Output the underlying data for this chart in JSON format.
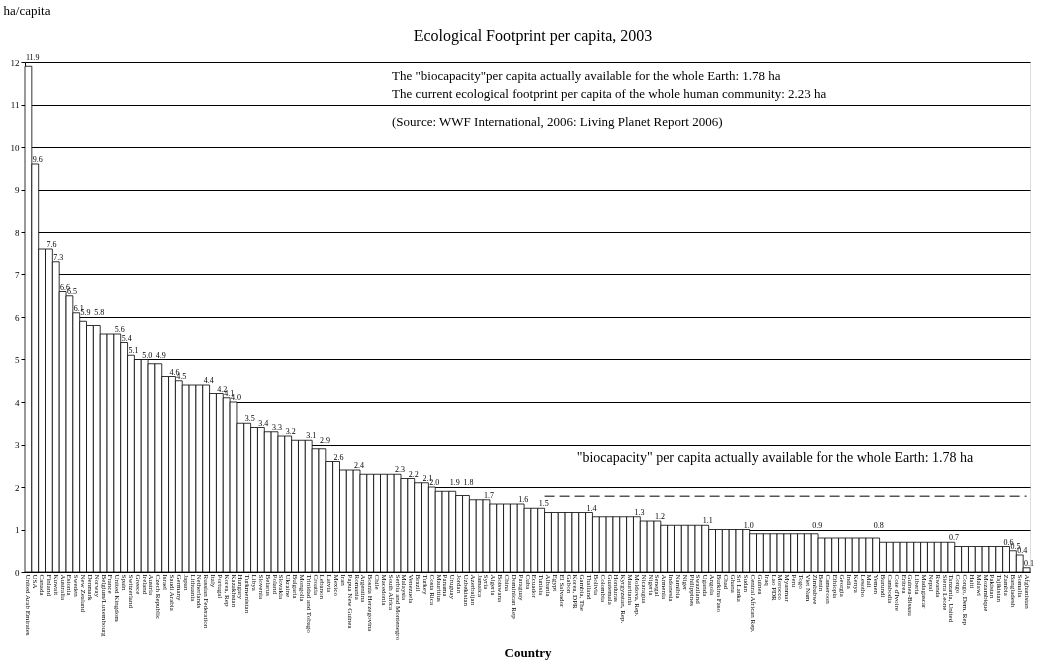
{
  "chart_data": {
    "type": "bar",
    "title": "Ecological Footprint per capita, 2003",
    "xlabel": "Country",
    "ylabel": "ha/capita",
    "color": "#ffffff",
    "categories": [
      "United Arab Emirates",
      "USA",
      "Canada",
      "Finland",
      "Kuwait",
      "Australia",
      "Estonia",
      "Sweden",
      "New Zealand",
      "Denmark",
      "Norway",
      "Belgium/Luxembourg",
      "France",
      "United Kingdom",
      "Spain",
      "Switzerland",
      "Greece",
      "Ireland",
      "Austria",
      "Czech Republic",
      "Israel",
      "Saudi Arabia",
      "Germany",
      "Japan",
      "Lithuania",
      "Netherlands",
      "Russian Federation",
      "Italy",
      "Portugal",
      "Korea, Rep",
      "Kazakhstan",
      "Hungary",
      "Turkmenistan",
      "Libya",
      "Slovenia",
      "Belarus",
      "Poland",
      "Slovakia",
      "Ukraine",
      "Bulgaria",
      "Mongolia",
      "Trinidad and Tobago",
      "Croatia",
      "Lebanon",
      "Latvia",
      "Mexico",
      "Iran",
      "Papua New Guinea",
      "Romania",
      "Argentina",
      "Bosnia Herzegovina",
      "Chile",
      "Macedonia",
      "South Africa",
      "Serbia and Montenegro",
      "Malaysia",
      "Venezuela",
      "Brazil",
      "Turkey",
      "Costa Rica",
      "Mauritius",
      "Panama",
      "Uruguay",
      "Jordan",
      "Uzbekistan",
      "Azerbaijan",
      "Jamaica",
      "Syria",
      "Algeria",
      "Botswana",
      "China",
      "Dominican Rep",
      "Paraguay",
      "Cuba",
      "Ecuador",
      "Tunisia",
      "Albania",
      "Egypt",
      "El Salvador",
      "Gabon",
      "Korea, DPR",
      "Gambia, The",
      "Thailand",
      "Bolivia",
      "Colombia",
      "Guatemala",
      "Honduras",
      "Kyrgyzstan, Rep.",
      "Mauritania",
      "Moldova, Rep.",
      "Nicaragua",
      "Nigeria",
      "Senegal",
      "Armenia",
      "Indonesia",
      "Namibia",
      "Niger",
      "Philippines",
      "Swaziland",
      "Uganda",
      "Angola",
      "Burkina Faso",
      "Chad",
      "Ghana",
      "Sri Lanka",
      "Sudan",
      "Central African Rep.",
      "Guinea",
      "Iraq",
      "Lao PDR",
      "Morocco",
      "Myanmar",
      "Peru",
      "Togo",
      "Viet Nam",
      "Zimbabwe",
      "Benin",
      "Cameroon",
      "Ethiopia",
      "Georgia",
      "India",
      "Kenya",
      "Lesotho",
      "Mali",
      "Yemen",
      "Burundi",
      "Cambodia",
      "Cote d'Ivoire",
      "Eritrea",
      "Guinea-Bissau",
      "Liberia",
      "Madagascar",
      "Nepal",
      "Rwanda",
      "Sierra Leone",
      "Tanzania, United",
      "Congo",
      "Congo, Dem. Rep",
      "Haiti",
      "Malawi",
      "Mozambique",
      "Pakistan",
      "Tajikistan",
      "Zambia",
      "Bangladesh",
      "Somalia",
      "Afghanistan"
    ],
    "values": [
      11.9,
      9.6,
      7.6,
      7.6,
      7.3,
      6.6,
      6.5,
      6.1,
      5.9,
      5.8,
      5.8,
      5.6,
      5.6,
      5.6,
      5.4,
      5.1,
      5.0,
      5.0,
      4.9,
      4.9,
      4.6,
      4.6,
      4.5,
      4.4,
      4.4,
      4.4,
      4.4,
      4.2,
      4.2,
      4.1,
      4.0,
      3.5,
      3.5,
      3.4,
      3.4,
      3.3,
      3.3,
      3.2,
      3.2,
      3.1,
      3.1,
      3.1,
      2.9,
      2.9,
      2.6,
      2.6,
      2.4,
      2.4,
      2.4,
      2.3,
      2.3,
      2.3,
      2.3,
      2.3,
      2.3,
      2.2,
      2.2,
      2.1,
      2.1,
      2.0,
      1.9,
      1.9,
      1.9,
      1.8,
      1.8,
      1.7,
      1.7,
      1.7,
      1.6,
      1.6,
      1.6,
      1.6,
      1.6,
      1.5,
      1.5,
      1.5,
      1.4,
      1.4,
      1.4,
      1.4,
      1.4,
      1.4,
      1.4,
      1.3,
      1.3,
      1.3,
      1.3,
      1.3,
      1.3,
      1.3,
      1.2,
      1.2,
      1.2,
      1.1,
      1.1,
      1.1,
      1.1,
      1.1,
      1.1,
      1.1,
      1.0,
      1.0,
      1.0,
      1.0,
      1.0,
      1.0,
      0.9,
      0.9,
      0.9,
      0.9,
      0.9,
      0.9,
      0.9,
      0.9,
      0.9,
      0.9,
      0.8,
      0.8,
      0.8,
      0.8,
      0.8,
      0.8,
      0.8,
      0.8,
      0.8,
      0.7,
      0.7,
      0.7,
      0.7,
      0.7,
      0.7,
      0.7,
      0.7,
      0.7,
      0.7,
      0.7,
      0.6,
      0.6,
      0.6,
      0.6,
      0.6,
      0.6,
      0.6,
      0.6,
      0.5,
      0.4,
      0.1
    ],
    "value_labels": [
      "11.9",
      "9.6",
      null,
      "7.6",
      "7.3",
      "6.6",
      "6.5",
      "6.1",
      "5.9",
      null,
      "5.8",
      null,
      null,
      "5.6",
      "5.4",
      "5.1",
      null,
      "5.0",
      null,
      "4.9",
      null,
      "4.6",
      "4.5",
      null,
      null,
      null,
      "4.4",
      null,
      "4.2",
      "4.1",
      "4.0",
      null,
      "3.5",
      null,
      "3.4",
      null,
      "3.3",
      null,
      "3.2",
      null,
      null,
      "3.1",
      null,
      "2.9",
      null,
      "2.6",
      null,
      null,
      "2.4",
      null,
      null,
      null,
      null,
      null,
      "2.3",
      null,
      "2.2",
      null,
      "2.1",
      "2.0",
      null,
      null,
      "1.9",
      null,
      "1.8",
      null,
      null,
      "1.7",
      null,
      null,
      null,
      null,
      "1.6",
      null,
      null,
      "1.5",
      null,
      null,
      null,
      null,
      null,
      null,
      "1.4",
      null,
      null,
      null,
      null,
      null,
      null,
      "1.3",
      null,
      null,
      "1.2",
      null,
      null,
      null,
      null,
      null,
      null,
      "1.1",
      null,
      null,
      null,
      null,
      null,
      "1.0",
      null,
      null,
      null,
      null,
      null,
      null,
      null,
      null,
      null,
      "0.9",
      null,
      null,
      null,
      null,
      null,
      null,
      null,
      null,
      "0.8",
      null,
      null,
      null,
      null,
      null,
      null,
      null,
      null,
      null,
      null,
      "0.7",
      null,
      null,
      null,
      null,
      null,
      null,
      null,
      "0.6",
      "0.5",
      "0.4",
      "0.1"
    ],
    "ylim": [
      0,
      12
    ],
    "yticks": [
      0,
      1,
      2,
      3,
      4,
      5,
      6,
      7,
      8,
      9,
      10,
      11,
      12
    ],
    "grid": "y",
    "ref_lines": [
      {
        "axis": "y",
        "value": 1.78,
        "label": "\"biocapacity\" per capita actually available for the whole Earth: 1.78 ha",
        "line_style": "dashed",
        "color": "#555555"
      }
    ],
    "annotations": [
      "The \"biocapacity\"per capita actually available for the whole Earth: 1.78 ha",
      "The current ecological footprint per capita of the whole human community: 2.23 ha",
      "(Source: WWF International, 2006: Living Planet Report 2006)"
    ]
  }
}
